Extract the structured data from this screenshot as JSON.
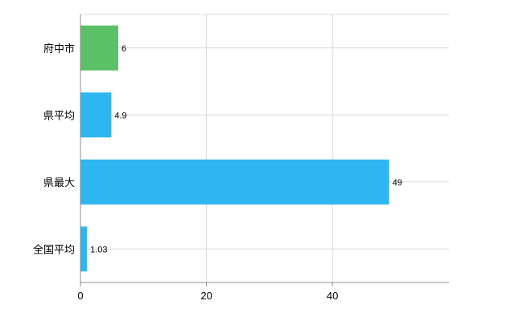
{
  "chart_data": {
    "type": "bar",
    "orientation": "horizontal",
    "categories": [
      "府中市",
      "県平均",
      "県最大",
      "全国平均"
    ],
    "values": [
      6,
      4.9,
      49,
      1.03
    ],
    "value_labels": [
      "6",
      "4.9",
      "49",
      "1.03"
    ],
    "bar_colors": [
      "#5cc066",
      "#2eb6f0",
      "#2eb6f0",
      "#2eb6f0"
    ],
    "xlim": [
      0,
      58.5
    ],
    "xticks": [
      0,
      20,
      40
    ],
    "xtick_labels": [
      "0",
      "20",
      "40"
    ],
    "grid": true,
    "legend": "none",
    "title": ""
  },
  "style": {
    "grid_color": "#d9d9d9",
    "axis_color": "#8c8c8c",
    "text_color": "#000000",
    "background": "#ffffff"
  }
}
